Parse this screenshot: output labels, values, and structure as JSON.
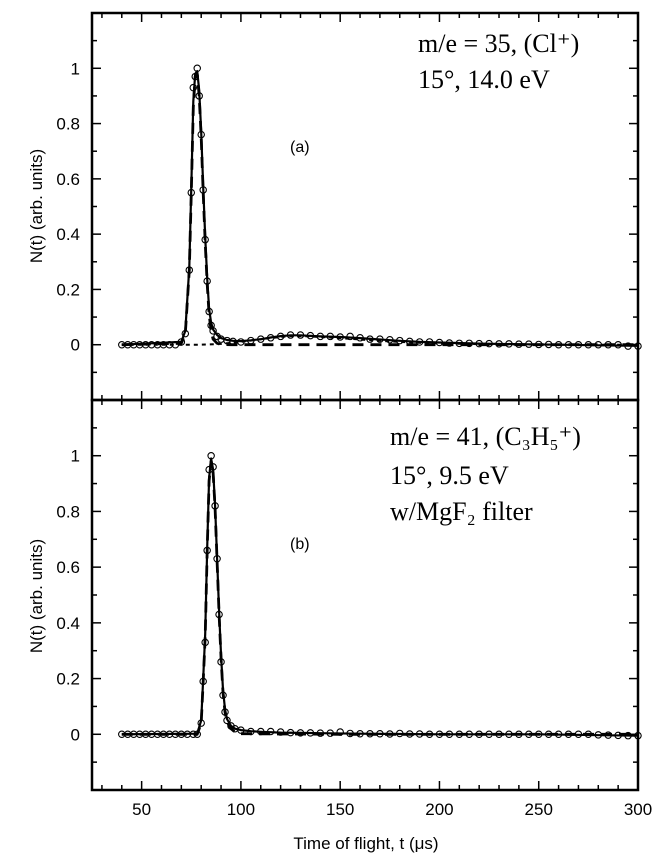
{
  "chart_data": [
    {
      "type": "line",
      "panel_label": "(a)",
      "annotation_lines": [
        "m/e = 35, (Cl⁺)",
        "15°, 14.0 eV"
      ],
      "ylabel": "N(t) (arb. units)",
      "xlabel": "",
      "xlim": [
        25,
        300
      ],
      "ylim": [
        -0.2,
        1.2
      ],
      "yticks": [
        0,
        0.2,
        0.4,
        0.6,
        0.8,
        1
      ],
      "ytick_labels": [
        "0",
        "0.2",
        "0.4",
        "0.6",
        "0.8",
        "1"
      ],
      "grid": false,
      "series": [
        {
          "style": "open-circle markers",
          "x": [
            40,
            43,
            46,
            49,
            52,
            55,
            58,
            61,
            64,
            67,
            70,
            72,
            74,
            75,
            76,
            77,
            78,
            79,
            80,
            81,
            82,
            83,
            84,
            85,
            86,
            88,
            90,
            93,
            96,
            100,
            105,
            110,
            115,
            120,
            125,
            130,
            135,
            140,
            145,
            150,
            155,
            160,
            165,
            170,
            175,
            180,
            185,
            190,
            195,
            200,
            205,
            210,
            215,
            220,
            225,
            230,
            235,
            240,
            245,
            250,
            255,
            260,
            265,
            270,
            275,
            280,
            285,
            290,
            295,
            300
          ],
          "y": [
            0,
            0,
            0,
            0,
            0,
            0,
            0,
            0,
            0,
            0,
            0.01,
            0.04,
            0.27,
            0.55,
            0.93,
            0.97,
            1.0,
            0.9,
            0.76,
            0.56,
            0.38,
            0.23,
            0.12,
            0.07,
            0.05,
            0.03,
            0.02,
            0.015,
            0.012,
            0.01,
            0.015,
            0.02,
            0.025,
            0.03,
            0.035,
            0.035,
            0.033,
            0.03,
            0.03,
            0.028,
            0.03,
            0.025,
            0.02,
            0.02,
            0.018,
            0.015,
            0.012,
            0.01,
            0.01,
            0.008,
            0.006,
            0.005,
            0.005,
            0.004,
            0.004,
            0.003,
            0.003,
            0.002,
            0.002,
            0.001,
            0.001,
            0,
            0,
            0,
            0,
            0,
            0,
            0,
            -0.005,
            -0.005
          ]
        },
        {
          "style": "solid fit",
          "x": [
            40,
            70,
            72,
            74,
            75,
            76,
            77,
            78,
            79,
            80,
            81,
            82,
            83,
            84,
            85,
            86,
            88,
            90,
            93,
            96,
            100,
            105,
            110,
            115,
            120,
            125,
            130,
            135,
            140,
            150,
            160,
            170,
            180,
            190,
            200,
            220,
            240,
            260,
            280,
            300
          ],
          "y": [
            0,
            0.01,
            0.05,
            0.28,
            0.57,
            0.88,
            0.98,
            0.99,
            0.92,
            0.77,
            0.57,
            0.39,
            0.24,
            0.13,
            0.08,
            0.055,
            0.035,
            0.024,
            0.017,
            0.014,
            0.013,
            0.016,
            0.02,
            0.026,
            0.031,
            0.034,
            0.034,
            0.032,
            0.03,
            0.028,
            0.024,
            0.019,
            0.014,
            0.01,
            0.008,
            0.004,
            0.002,
            0,
            -0.002,
            -0.004
          ]
        },
        {
          "style": "dashed primary",
          "x": [
            40,
            70,
            72,
            74,
            75,
            76,
            77,
            78,
            79,
            80,
            81,
            82,
            83,
            84,
            85,
            86,
            88,
            90,
            95,
            100,
            150,
            200,
            250,
            300
          ],
          "y": [
            0,
            0.005,
            0.04,
            0.27,
            0.55,
            0.86,
            0.97,
            0.98,
            0.9,
            0.75,
            0.55,
            0.37,
            0.22,
            0.11,
            0.05,
            0.02,
            0.005,
            0.001,
            0,
            0,
            0,
            0,
            0,
            0
          ]
        },
        {
          "style": "short-dashed secondary",
          "x": [
            40,
            80,
            90,
            100,
            110,
            120,
            125,
            130,
            135,
            140,
            150,
            160,
            170,
            180,
            190,
            200,
            220,
            240,
            260,
            280,
            300
          ],
          "y": [
            0,
            0,
            0.003,
            0.01,
            0.02,
            0.028,
            0.031,
            0.031,
            0.03,
            0.028,
            0.024,
            0.019,
            0.014,
            0.01,
            0.007,
            0.005,
            0.002,
            0.001,
            0,
            0,
            0
          ]
        }
      ]
    },
    {
      "type": "line",
      "panel_label": "(b)",
      "annotation_lines": [
        "m/e = 41, (C₃H₅⁺)",
        "15°, 9.5 eV",
        "w/MgF₂ filter"
      ],
      "ylabel": "N(t) (arb. units)",
      "xlabel": "Time of flight, t (μs)",
      "xlim": [
        25,
        300
      ],
      "ylim": [
        -0.2,
        1.2
      ],
      "xticks": [
        50,
        100,
        150,
        200,
        250,
        300
      ],
      "xtick_labels": [
        "50",
        "100",
        "150",
        "200",
        "250",
        "300"
      ],
      "yticks": [
        0,
        0.2,
        0.4,
        0.6,
        0.8,
        1
      ],
      "ytick_labels": [
        "0",
        "0.2",
        "0.4",
        "0.6",
        "0.8",
        "1"
      ],
      "grid": false,
      "series": [
        {
          "style": "open-circle markers",
          "x": [
            40,
            43,
            46,
            49,
            52,
            55,
            58,
            61,
            64,
            67,
            70,
            73,
            76,
            78,
            80,
            81,
            82,
            83,
            84,
            85,
            86,
            87,
            88,
            89,
            90,
            91,
            92,
            93,
            95,
            97,
            100,
            105,
            110,
            115,
            120,
            125,
            130,
            135,
            140,
            145,
            150,
            155,
            160,
            165,
            170,
            175,
            180,
            185,
            190,
            195,
            200,
            205,
            210,
            215,
            220,
            225,
            230,
            235,
            240,
            245,
            250,
            255,
            260,
            265,
            270,
            275,
            280,
            285,
            290,
            295,
            300
          ],
          "y": [
            0,
            0,
            0,
            0,
            0,
            0,
            0,
            0,
            0,
            0,
            0,
            0,
            0,
            0,
            0.04,
            0.19,
            0.33,
            0.66,
            0.95,
            1.0,
            0.96,
            0.82,
            0.63,
            0.43,
            0.26,
            0.14,
            0.08,
            0.05,
            0.03,
            0.02,
            0.015,
            0.01,
            0.01,
            0.01,
            0.008,
            0.006,
            0.005,
            0.005,
            0.004,
            0.004,
            0.008,
            0.003,
            0.002,
            0.002,
            0.002,
            0.001,
            0.003,
            0.001,
            0.001,
            0,
            0,
            0,
            0,
            0,
            0,
            0,
            0,
            0,
            0,
            0,
            0,
            0,
            0,
            0,
            0,
            0,
            -0.002,
            -0.003,
            -0.004,
            -0.005,
            -0.005
          ]
        },
        {
          "style": "solid fit",
          "x": [
            40,
            78,
            80,
            81,
            82,
            83,
            84,
            85,
            86,
            87,
            88,
            89,
            90,
            91,
            92,
            93,
            95,
            97,
            100,
            105,
            110,
            120,
            130,
            140,
            160,
            180,
            200,
            250,
            300
          ],
          "y": [
            0,
            0.002,
            0.05,
            0.2,
            0.36,
            0.67,
            0.92,
            0.99,
            0.95,
            0.82,
            0.63,
            0.44,
            0.28,
            0.16,
            0.09,
            0.055,
            0.03,
            0.02,
            0.015,
            0.011,
            0.009,
            0.006,
            0.005,
            0.004,
            0.002,
            0.001,
            0,
            0,
            -0.005
          ]
        },
        {
          "style": "dashed primary",
          "x": [
            40,
            78,
            80,
            81,
            82,
            83,
            84,
            85,
            86,
            87,
            88,
            89,
            90,
            91,
            92,
            93,
            95,
            97,
            100,
            150,
            200,
            250,
            300
          ],
          "y": [
            0,
            0,
            0.04,
            0.19,
            0.35,
            0.66,
            0.91,
            0.98,
            0.94,
            0.81,
            0.62,
            0.43,
            0.27,
            0.15,
            0.08,
            0.045,
            0.02,
            0.008,
            0.002,
            0,
            0,
            0,
            0
          ]
        }
      ]
    }
  ]
}
